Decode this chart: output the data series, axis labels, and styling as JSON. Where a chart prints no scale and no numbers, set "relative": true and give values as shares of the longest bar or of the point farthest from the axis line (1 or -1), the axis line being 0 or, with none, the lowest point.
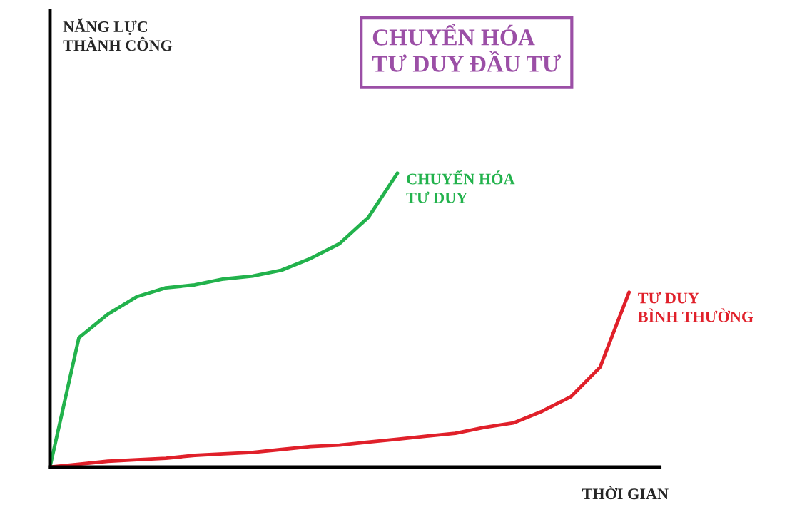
{
  "chart_data": {
    "type": "line",
    "title": "CHUYỂN HÓA\nTƯ DUY ĐẦU TƯ",
    "annotations": [
      "NĂNG LỰC\nTHÀNH CÔNG"
    ],
    "xlabel": "THỜI GIAN",
    "relative": true,
    "legend": false,
    "marker": "none",
    "line_style": "solid",
    "categories": [
      null,
      null,
      null,
      null,
      null,
      null,
      null,
      null,
      null,
      null,
      null,
      null,
      null,
      null,
      null,
      null,
      null,
      null,
      null,
      null,
      null
    ],
    "series": [
      {
        "name": "CHUYỂN HÓA\nTƯ DUY",
        "color": "#22b24c",
        "values": [
          0,
          0.44,
          0.52,
          0.58,
          0.61,
          0.62,
          0.64,
          0.65,
          0.67,
          0.71,
          0.76,
          0.85,
          1.0,
          null,
          null,
          null,
          null,
          null,
          null,
          null,
          null
        ]
      },
      {
        "name": "TƯ DUY\nBÌNH THƯỜNG",
        "color": "#e0202a",
        "values": [
          0,
          0.01,
          0.02,
          0.025,
          0.03,
          0.04,
          0.045,
          0.05,
          0.06,
          0.07,
          0.075,
          0.085,
          0.095,
          0.105,
          0.115,
          0.135,
          0.15,
          0.19,
          0.24,
          0.34,
          0.595
        ]
      }
    ]
  }
}
